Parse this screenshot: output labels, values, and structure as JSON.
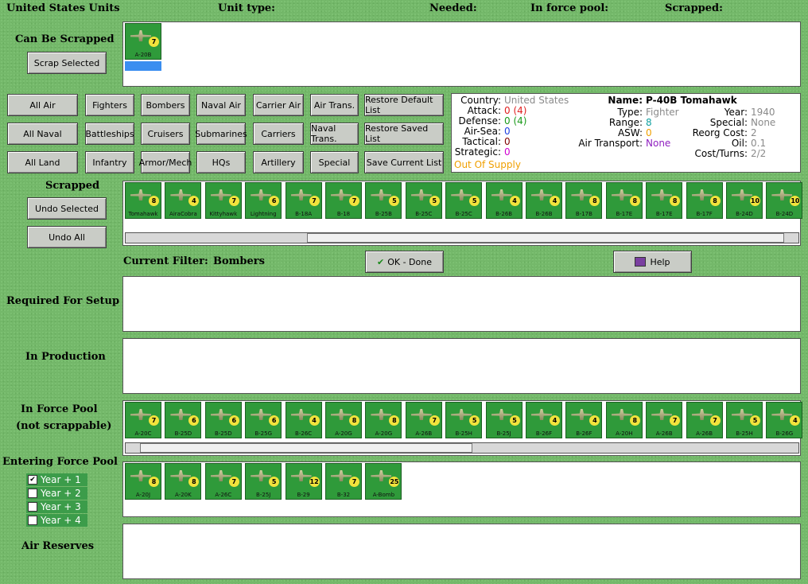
{
  "header": {
    "title": "United States Units",
    "unit_type": "Unit type:",
    "needed": "Needed:",
    "in_force_pool": "In force pool:",
    "scrapped": "Scrapped:"
  },
  "can_be_scrapped": {
    "label": "Can Be Scrapped",
    "button": "Scrap Selected",
    "units": [
      {
        "code": "A-20B",
        "value": "7"
      }
    ]
  },
  "filter_buttons": [
    [
      "All Air",
      "Fighters",
      "Bombers",
      "Naval Air",
      "Carrier Air",
      "Air Trans.",
      "Restore Default List"
    ],
    [
      "All Naval",
      "Battleships",
      "Cruisers",
      "Submarines",
      "Carriers",
      "Naval Trans.",
      "Restore Saved List"
    ],
    [
      "All Land",
      "Infantry",
      "Armor/Mech",
      "HQs",
      "Artillery",
      "Special",
      "Save Current List"
    ]
  ],
  "info": {
    "left": [
      {
        "label": "Country:",
        "value": "United States",
        "color": "#8a8a8a"
      },
      {
        "label": "Attack:",
        "value": "0 (4)",
        "color": "#e02020"
      },
      {
        "label": "Defense:",
        "value": "0 (4)",
        "color": "#1a9a1a"
      },
      {
        "label": "Air-Sea:",
        "value": "0",
        "color": "#2040e0"
      },
      {
        "label": "Tactical:",
        "value": "0",
        "color": "#800000"
      },
      {
        "label": "Strategic:",
        "value": "0",
        "color": "#d000d0"
      }
    ],
    "status": "Out Of Supply",
    "status_color": "#f0a000",
    "name_label": "Name:",
    "name": "P-40B Tomahawk",
    "middle": [
      {
        "label": "Type:",
        "value": "Fighter",
        "color": "#8a8a8a"
      },
      {
        "label": "Range:",
        "value": "8",
        "color": "#10a0a0"
      },
      {
        "label": "ASW:",
        "value": "0",
        "color": "#f0a000"
      },
      {
        "label": "Air Transport:",
        "value": "None",
        "color": "#9020c0"
      }
    ],
    "right": [
      {
        "label": "Year:",
        "value": "1940",
        "color": "#8a8a8a"
      },
      {
        "label": "Special:",
        "value": "None",
        "color": "#8a8a8a"
      },
      {
        "label": "Reorg Cost:",
        "value": "2",
        "color": "#8a8a8a"
      },
      {
        "label": "Oil:",
        "value": "0.1",
        "color": "#8a8a8a"
      },
      {
        "label": "Cost/Turns:",
        "value": "2/2",
        "color": "#8a8a8a"
      }
    ]
  },
  "scrapped": {
    "label": "Scrapped",
    "undo_selected": "Undo Selected",
    "undo_all": "Undo All",
    "units": [
      {
        "code": "Tomahawk",
        "value": "8"
      },
      {
        "code": "AiraCobra",
        "value": "4"
      },
      {
        "code": "Kittyhawk",
        "value": "7"
      },
      {
        "code": "Lightning",
        "value": "6"
      },
      {
        "code": "B-18A",
        "value": "7"
      },
      {
        "code": "B-18",
        "value": "7"
      },
      {
        "code": "B-25B",
        "value": "5"
      },
      {
        "code": "B-25C",
        "value": "5"
      },
      {
        "code": "B-25C",
        "value": "5"
      },
      {
        "code": "B-26B",
        "value": "4"
      },
      {
        "code": "B-26B",
        "value": "4"
      },
      {
        "code": "B-17B",
        "value": "8"
      },
      {
        "code": "B-17E",
        "value": "8"
      },
      {
        "code": "B-17E",
        "value": "8"
      },
      {
        "code": "B-17F",
        "value": "8"
      },
      {
        "code": "B-24D",
        "value": "10"
      },
      {
        "code": "B-24D",
        "value": "10"
      }
    ]
  },
  "filter": {
    "label": "Current Filter:",
    "value": "Bombers",
    "ok": "OK - Done",
    "help": "Help"
  },
  "required_for_setup": {
    "label": "Required For Setup"
  },
  "in_production": {
    "label": "In Production"
  },
  "in_force_pool": {
    "label": "In Force Pool",
    "sublabel": "(not scrappable)",
    "units": [
      {
        "code": "A-20C",
        "value": "7"
      },
      {
        "code": "B-25D",
        "value": "6"
      },
      {
        "code": "B-25D",
        "value": "6"
      },
      {
        "code": "B-25G",
        "value": "6"
      },
      {
        "code": "B-26C",
        "value": "4"
      },
      {
        "code": "A-20G",
        "value": "8"
      },
      {
        "code": "A-20G",
        "value": "8"
      },
      {
        "code": "A-26B",
        "value": "7"
      },
      {
        "code": "B-25H",
        "value": "5"
      },
      {
        "code": "B-25J",
        "value": "5"
      },
      {
        "code": "B-26F",
        "value": "4"
      },
      {
        "code": "B-26F",
        "value": "4"
      },
      {
        "code": "A-20H",
        "value": "8"
      },
      {
        "code": "A-26B",
        "value": "7"
      },
      {
        "code": "A-26B",
        "value": "7"
      },
      {
        "code": "B-25H",
        "value": "5"
      },
      {
        "code": "B-26G",
        "value": "4"
      }
    ]
  },
  "entering_force_pool": {
    "label": "Entering Force Pool",
    "years": [
      {
        "label": "Year + 1",
        "checked": true
      },
      {
        "label": "Year + 2",
        "checked": false
      },
      {
        "label": "Year + 3",
        "checked": false
      },
      {
        "label": "Year + 4",
        "checked": false
      }
    ],
    "units": [
      {
        "code": "A-20J",
        "value": "8"
      },
      {
        "code": "A-20K",
        "value": "8"
      },
      {
        "code": "A-26C",
        "value": "7"
      },
      {
        "code": "B-25J",
        "value": "5"
      },
      {
        "code": "B-29",
        "value": "12"
      },
      {
        "code": "B-32",
        "value": "7"
      },
      {
        "code": "A-Bomb",
        "value": "25"
      }
    ]
  },
  "air_reserves": {
    "label": "Air Reserves"
  }
}
